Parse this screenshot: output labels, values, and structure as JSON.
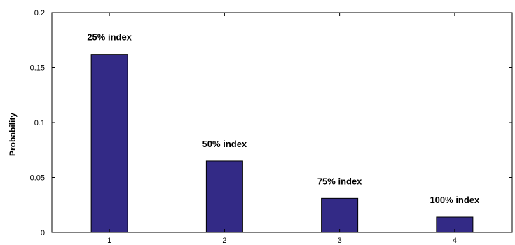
{
  "chart_data": {
    "type": "bar",
    "categories": [
      "1",
      "2",
      "3",
      "4"
    ],
    "values": [
      0.162,
      0.065,
      0.031,
      0.014
    ],
    "annotations": [
      "25% index",
      "50% index",
      "75% index",
      "100% index"
    ],
    "title": "",
    "xlabel": "",
    "ylabel": "Probability",
    "ylim": [
      0,
      0.2
    ],
    "yticks": [
      0,
      0.05,
      0.1,
      0.15,
      0.2
    ],
    "ytick_labels": [
      "0",
      "0.05",
      "0.1",
      "0.15",
      "0.2"
    ],
    "grid": false,
    "legend": "none",
    "bar_color": "#332a86",
    "bar_edge_color": "#000000"
  }
}
